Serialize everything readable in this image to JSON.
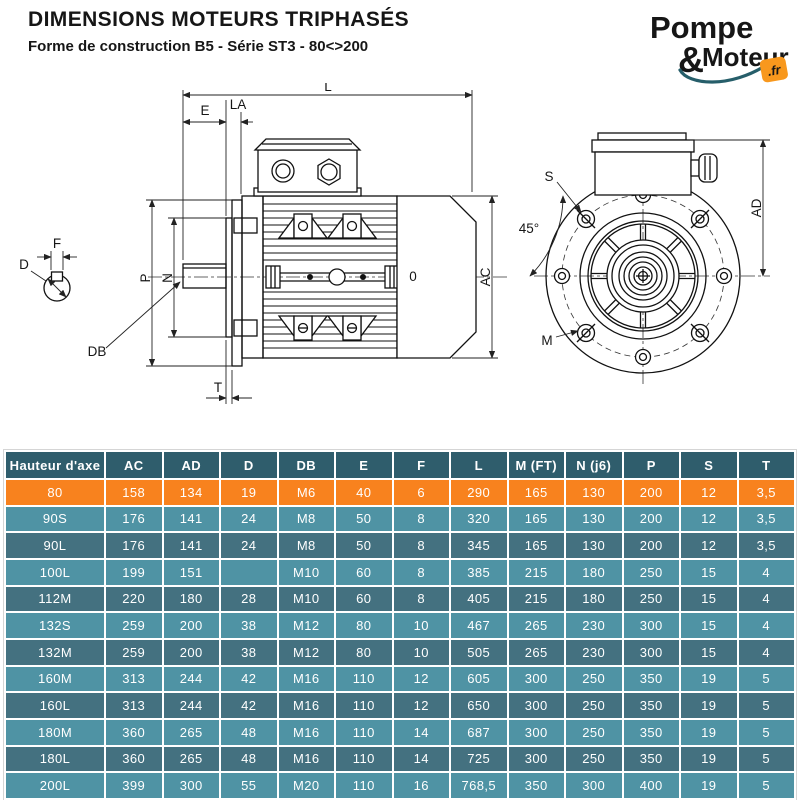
{
  "header": {
    "title": "DIMENSIONS MOTEURS TRIPHASÉS",
    "subtitle": "Forme de construction B5 - Série ST3 - 80<>200"
  },
  "logo": {
    "brand_top": "Pompe",
    "brand_amp": "&",
    "brand_bottom": "Moteur",
    "brand_tld": ".fr"
  },
  "diagram": {
    "labels": {
      "L": "L",
      "E": "E",
      "LA": "LA",
      "P": "P",
      "N": "N",
      "AC": "AC",
      "T": "T",
      "DB": "DB",
      "D": "D",
      "F": "F",
      "zero": "0",
      "S": "S",
      "angle45": "45°",
      "M": "M",
      "AD": "AD"
    }
  },
  "table": {
    "columns": [
      "Hauteur d'axe",
      "AC",
      "AD",
      "D",
      "DB",
      "E",
      "F",
      "L",
      "M (FT)",
      "N (j6)",
      "P",
      "S",
      "T"
    ],
    "rows": [
      {
        "label": "80",
        "highlight": true,
        "values": [
          "158",
          "134",
          "19",
          "M6",
          "40",
          "6",
          "290",
          "165",
          "130",
          "200",
          "12",
          "3,5"
        ]
      },
      {
        "label": "90S",
        "highlight": false,
        "values": [
          "176",
          "141",
          "24",
          "M8",
          "50",
          "8",
          "320",
          "165",
          "130",
          "200",
          "12",
          "3,5"
        ]
      },
      {
        "label": "90L",
        "highlight": false,
        "values": [
          "176",
          "141",
          "24",
          "M8",
          "50",
          "8",
          "345",
          "165",
          "130",
          "200",
          "12",
          "3,5"
        ]
      },
      {
        "label": "100L",
        "highlight": false,
        "values": [
          "199",
          "151",
          "",
          "M10",
          "60",
          "8",
          "385",
          "215",
          "180",
          "250",
          "15",
          "4"
        ]
      },
      {
        "label": "112M",
        "highlight": false,
        "values": [
          "220",
          "180",
          "28",
          "M10",
          "60",
          "8",
          "405",
          "215",
          "180",
          "250",
          "15",
          "4"
        ]
      },
      {
        "label": "132S",
        "highlight": false,
        "values": [
          "259",
          "200",
          "38",
          "M12",
          "80",
          "10",
          "467",
          "265",
          "230",
          "300",
          "15",
          "4"
        ]
      },
      {
        "label": "132M",
        "highlight": false,
        "values": [
          "259",
          "200",
          "38",
          "M12",
          "80",
          "10",
          "505",
          "265",
          "230",
          "300",
          "15",
          "4"
        ]
      },
      {
        "label": "160M",
        "highlight": false,
        "values": [
          "313",
          "244",
          "42",
          "M16",
          "110",
          "12",
          "605",
          "300",
          "250",
          "350",
          "19",
          "5"
        ]
      },
      {
        "label": "160L",
        "highlight": false,
        "values": [
          "313",
          "244",
          "42",
          "M16",
          "110",
          "12",
          "650",
          "300",
          "250",
          "350",
          "19",
          "5"
        ]
      },
      {
        "label": "180M",
        "highlight": false,
        "values": [
          "360",
          "265",
          "48",
          "M16",
          "110",
          "14",
          "687",
          "300",
          "250",
          "350",
          "19",
          "5"
        ]
      },
      {
        "label": "180L",
        "highlight": false,
        "values": [
          "360",
          "265",
          "48",
          "M16",
          "110",
          "14",
          "725",
          "300",
          "250",
          "350",
          "19",
          "5"
        ]
      },
      {
        "label": "200L",
        "highlight": false,
        "values": [
          "399",
          "300",
          "55",
          "M20",
          "110",
          "16",
          "768,5",
          "350",
          "300",
          "400",
          "19",
          "5"
        ]
      }
    ]
  },
  "colors": {
    "header_bg": "#2F5D6C",
    "row_light": "#4F93A4",
    "row_dark": "#447180",
    "accent_orange": "#F8821E",
    "brand_teal": "#265E6A",
    "brand_orange": "#F8981D"
  }
}
